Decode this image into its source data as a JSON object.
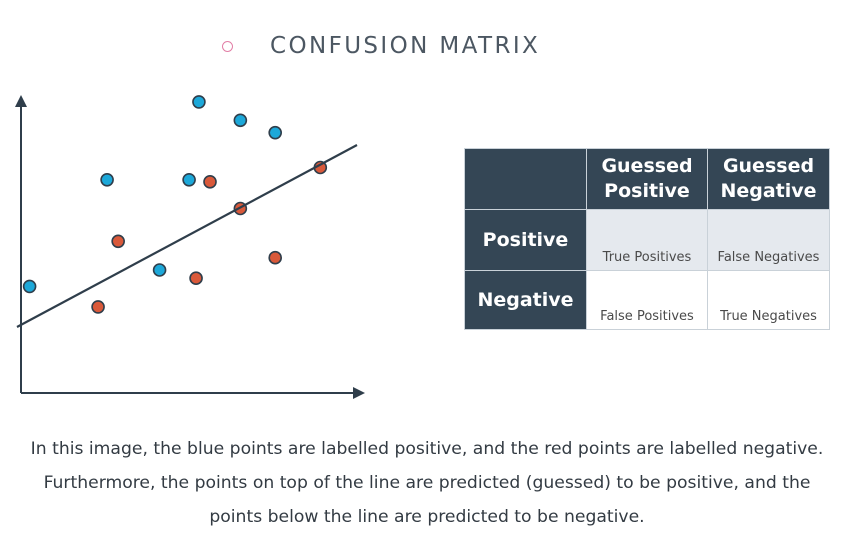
{
  "title": "CONFUSION MATRIX",
  "scatter": {
    "line": {
      "x1": 0,
      "y1": 0.87,
      "x2": 1,
      "y2": 6.95
    },
    "points": [
      {
        "label": "positive",
        "x": 0.21,
        "y": 2.6
      },
      {
        "label": "negative",
        "x": 1.88,
        "y": 2.1
      },
      {
        "label": "positive",
        "x": 2.1,
        "y": 5.2
      },
      {
        "label": "negative",
        "x": 2.37,
        "y": 3.7
      },
      {
        "label": "positive",
        "x": 3.38,
        "y": 3.0
      },
      {
        "label": "positive",
        "x": 4.1,
        "y": 5.2
      },
      {
        "label": "negative",
        "x": 4.27,
        "y": 2.8
      },
      {
        "label": "positive",
        "x": 4.34,
        "y": 7.1
      },
      {
        "label": "negative",
        "x": 4.61,
        "y": 5.15
      },
      {
        "label": "negative",
        "x": 5.35,
        "y": 4.5
      },
      {
        "label": "positive",
        "x": 5.35,
        "y": 6.65
      },
      {
        "label": "positive",
        "x": 6.2,
        "y": 6.35
      },
      {
        "label": "negative",
        "x": 6.2,
        "y": 3.3
      },
      {
        "label": "negative",
        "x": 7.3,
        "y": 5.5
      }
    ],
    "colors": {
      "positive": "#1ca8d9",
      "negative": "#d9593a",
      "axis": "#2f3e4b"
    }
  },
  "matrix": {
    "columns": [
      "Guessed Positive",
      "Guessed Negative"
    ],
    "col1_lines": [
      "Guessed",
      "Positive"
    ],
    "col2_lines": [
      "Guessed",
      "Negative"
    ],
    "rows": [
      {
        "header": "Positive",
        "cells": [
          "True Positives",
          "False Negatives"
        ]
      },
      {
        "header": "Negative",
        "cells": [
          "False Positives",
          "True Negatives"
        ]
      }
    ]
  },
  "description": "In this image, the blue points are labelled positive, and the red points are labelled negative. Furthermore, the points on top of the line are predicted (guessed) to be positive, and the points below the line are predicted to be negative."
}
